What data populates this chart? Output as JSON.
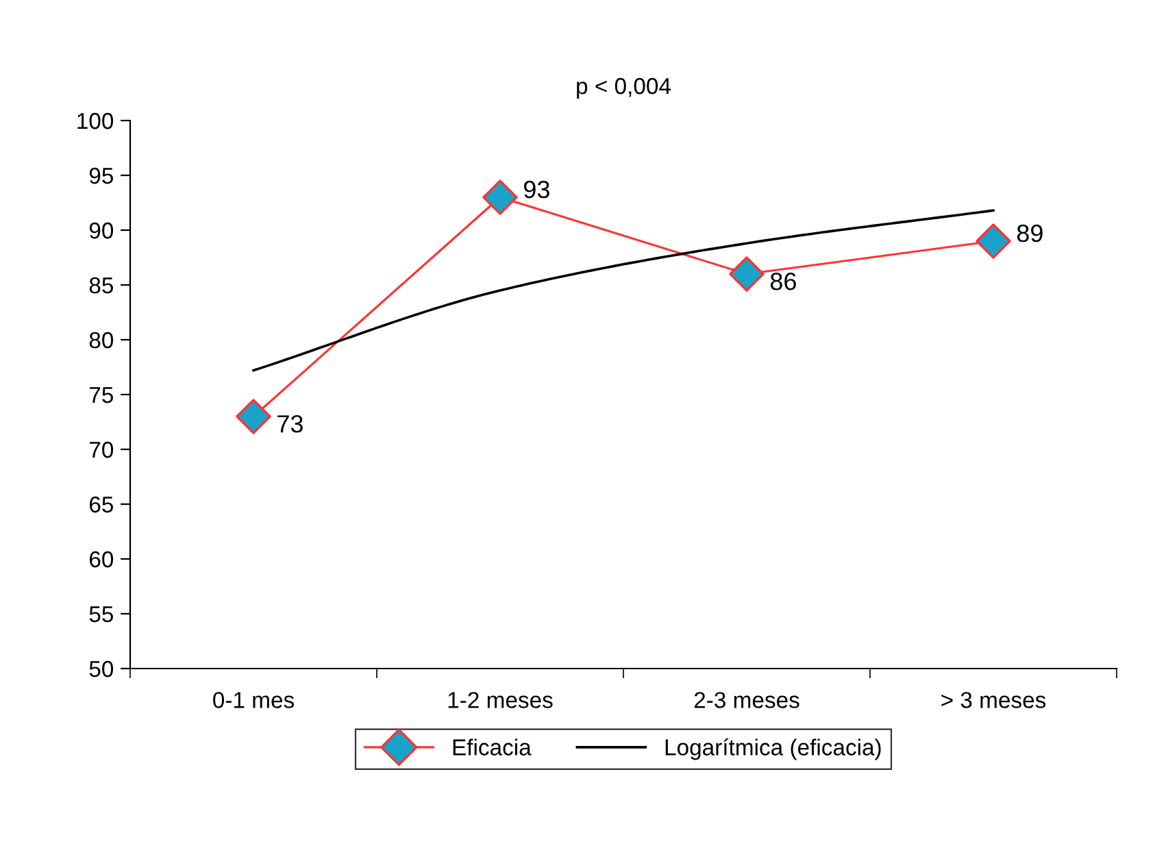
{
  "chart_data": {
    "type": "line",
    "title": "p < 0,004",
    "categories": [
      "0-1 mes",
      "1-2 meses",
      "2-3 meses",
      "> 3 meses"
    ],
    "series": [
      {
        "name": "Eficacia",
        "color": "#ff3333",
        "values": [
          73,
          93,
          86,
          89
        ],
        "marker": "diamond",
        "colors": [
          "#1aa3c8",
          "#1aa3c8",
          "#1aa3c8",
          "#1aa3c8"
        ],
        "data_labels": true
      },
      {
        "name": "Logarítmica (eficacia)",
        "color": "#000000",
        "values": [
          77.2,
          84.5,
          88.8,
          91.8
        ],
        "marker": "none"
      }
    ],
    "ylim": [
      50,
      100
    ],
    "yticks": [
      50,
      55,
      60,
      65,
      70,
      75,
      80,
      85,
      90,
      95,
      100
    ],
    "grid": false,
    "legend": "bottom",
    "line_style": "solid"
  }
}
